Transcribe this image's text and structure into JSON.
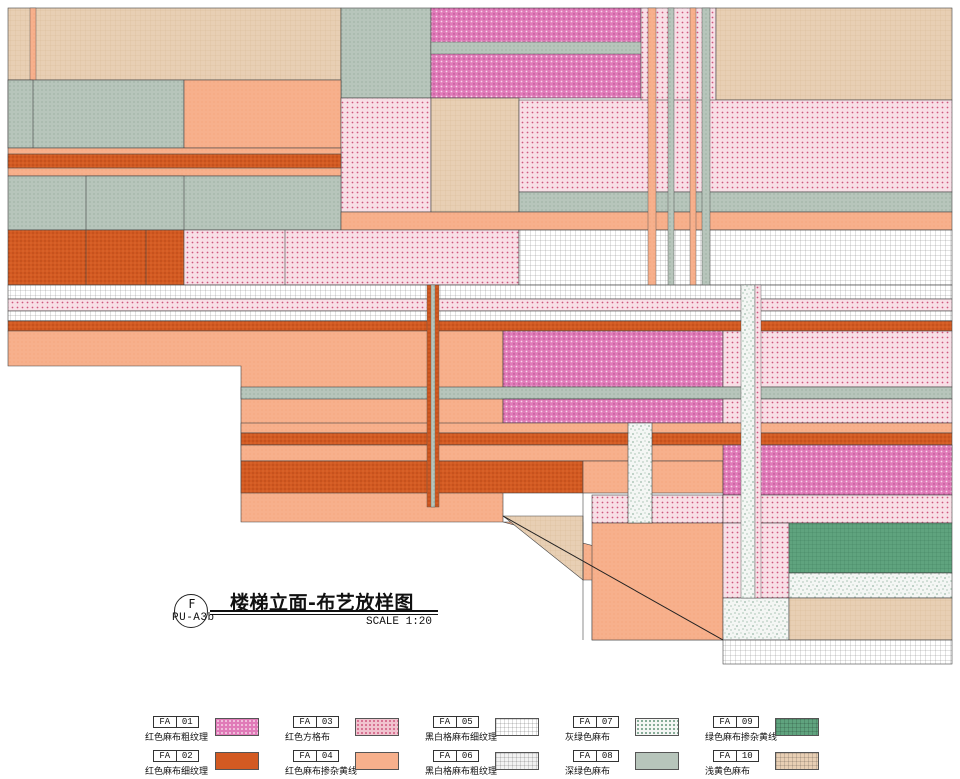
{
  "drawing": {
    "title": "楼梯立面-布艺放样图",
    "section_letter": "F",
    "sheet_ref": "PU-A3b",
    "scale": "SCALE 1:20"
  },
  "legend": [
    {
      "code_prefix": "FA",
      "code_num": "01",
      "name": "红色麻布粗纹理",
      "color": "#e07ab8",
      "pattern": "pink-coarse"
    },
    {
      "code_prefix": "FA",
      "code_num": "02",
      "name": "红色麻布细纹理",
      "color": "#d35a22",
      "pattern": "orange"
    },
    {
      "code_prefix": "FA",
      "code_num": "03",
      "name": "红色方格布",
      "color": "#f1c3cf",
      "pattern": "pink-check"
    },
    {
      "code_prefix": "FA",
      "code_num": "04",
      "name": "红色麻布掺杂黄线",
      "color": "#f7b08c",
      "pattern": "salmon"
    },
    {
      "code_prefix": "FA",
      "code_num": "05",
      "name": "黑白格麻布细纹理",
      "color": "#ffffff",
      "pattern": "grid"
    },
    {
      "code_prefix": "FA",
      "code_num": "06",
      "name": "黑白格麻布粗纹理",
      "color": "#f2f2f2",
      "pattern": "grid-fine"
    },
    {
      "code_prefix": "FA",
      "code_num": "07",
      "name": "灰绿色麻布",
      "color": "#f4f6f4",
      "pattern": "speckle"
    },
    {
      "code_prefix": "FA",
      "code_num": "08",
      "name": "深绿色麻布",
      "color": "#b7c5bb",
      "pattern": "green-grey"
    },
    {
      "code_prefix": "FA",
      "code_num": "09",
      "name": "绿色麻布掺杂黄线",
      "color": "#5fa37e",
      "pattern": "green"
    },
    {
      "code_prefix": "FA",
      "code_num": "10",
      "name": "浅黄色麻布",
      "color": "#e8cfb4",
      "pattern": "beige"
    }
  ]
}
